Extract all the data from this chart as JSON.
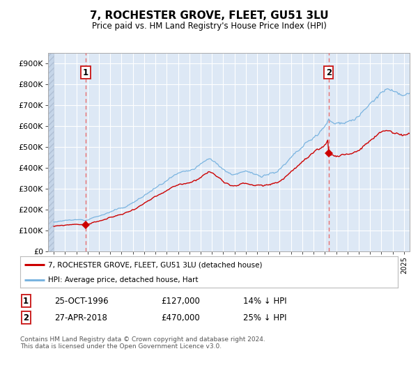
{
  "title": "7, ROCHESTER GROVE, FLEET, GU51 3LU",
  "subtitle": "Price paid vs. HM Land Registry's House Price Index (HPI)",
  "background_color": "#ffffff",
  "plot_bg_color": "#dde8f5",
  "grid_color": "#ffffff",
  "ylim": [
    0,
    950000
  ],
  "yticks": [
    0,
    100000,
    200000,
    300000,
    400000,
    500000,
    600000,
    700000,
    800000,
    900000
  ],
  "ytick_labels": [
    "£0",
    "£100K",
    "£200K",
    "£300K",
    "£400K",
    "£500K",
    "£600K",
    "£700K",
    "£800K",
    "£900K"
  ],
  "sale1_year": 1996.83,
  "sale1_price": 127000,
  "sale2_year": 2018.33,
  "sale2_price": 470000,
  "red_color": "#cc0000",
  "blue_color": "#7ab4e0",
  "dashed_color": "#e87070",
  "marker_color": "#cc0000",
  "legend_label_red": "7, ROCHESTER GROVE, FLEET, GU51 3LU (detached house)",
  "legend_label_blue": "HPI: Average price, detached house, Hart",
  "footer": "Contains HM Land Registry data © Crown copyright and database right 2024.\nThis data is licensed under the Open Government Licence v3.0.",
  "xmin": 1993.5,
  "xmax": 2025.5
}
